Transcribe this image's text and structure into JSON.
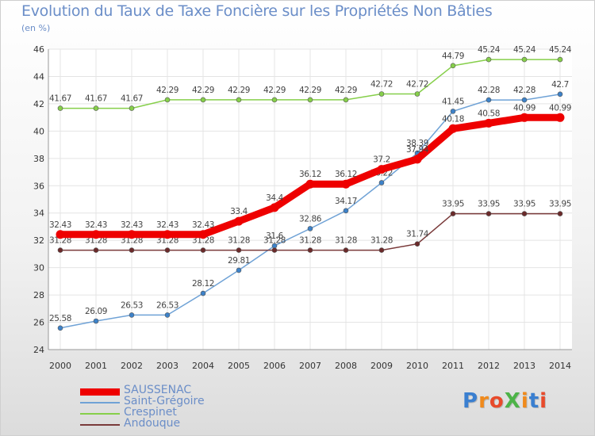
{
  "title": "Evolution du Taux de Taxe Foncière sur les Propriétés Non Bâties",
  "ylabel": "(en %)",
  "logo": {
    "text": "ProXiti",
    "colors": [
      "#3a7fd0",
      "#f08a1c",
      "#e84a2b",
      "#4db348",
      "#f08a1c",
      "#3a7fd0",
      "#e84a2b"
    ]
  },
  "chart_data": {
    "type": "line",
    "x": [
      "2000",
      "2001",
      "2002",
      "2003",
      "2004",
      "2005",
      "2006",
      "2007",
      "2008",
      "2009",
      "2010",
      "2011",
      "2012",
      "2013",
      "2014"
    ],
    "ylim": [
      24,
      46
    ],
    "yticks": [
      "24",
      "26",
      "28",
      "30",
      "32",
      "34",
      "36",
      "38",
      "40",
      "42",
      "44",
      "46"
    ],
    "grid": true,
    "legend_position": "bottom-left",
    "series": [
      {
        "name": "Crespinet",
        "color": "#86cf4a",
        "marker": "#86cf4a",
        "width": 1.5,
        "values": [
          41.67,
          41.67,
          41.67,
          42.29,
          42.29,
          42.29,
          42.29,
          42.29,
          42.29,
          42.72,
          42.72,
          44.79,
          45.24,
          45.24,
          45.24
        ],
        "labels": [
          "41.67",
          "41.67",
          "41.67",
          "42.29",
          "42.29",
          "42.29",
          "42.29",
          "42.29",
          "42.29",
          "42.72",
          "42.72",
          "44.79",
          "45.24",
          "45.24",
          "45.24"
        ]
      },
      {
        "name": "Saint-Grégoire",
        "color": "#6fa2d6",
        "marker": "#3d82c9",
        "width": 1.5,
        "values": [
          25.58,
          26.09,
          26.53,
          26.53,
          28.12,
          29.81,
          31.6,
          32.86,
          34.17,
          36.22,
          38.39,
          41.45,
          42.28,
          42.28,
          42.7
        ],
        "labels": [
          "25.58",
          "26.09",
          "26.53",
          "26.53",
          "28.12",
          "29.81",
          "31.6",
          "32.86",
          "34.17",
          "36.22",
          "38.39",
          "41.45",
          "42.28",
          "42.28",
          "42.7"
        ]
      },
      {
        "name": "Andouque",
        "color": "#7a3a3a",
        "marker": "#6b2a2a",
        "width": 1.5,
        "values": [
          31.28,
          31.28,
          31.28,
          31.28,
          31.28,
          31.28,
          31.28,
          31.28,
          31.28,
          31.28,
          31.74,
          33.95,
          33.95,
          33.95,
          33.95
        ],
        "labels": [
          "31.28",
          "31.28",
          "31.28",
          "31.28",
          "31.28",
          "31.28",
          "31.28",
          "31.28",
          "31.28",
          "31.28",
          "31.74",
          "33.95",
          "33.95",
          "33.95",
          "33.95"
        ]
      },
      {
        "name": "SAUSSENAC",
        "color": "#ee0000",
        "marker": "#ee0000",
        "width": 9,
        "values": [
          32.43,
          32.43,
          32.43,
          32.43,
          32.43,
          33.4,
          34.4,
          36.12,
          36.12,
          37.2,
          37.94,
          40.18,
          40.58,
          40.99,
          40.99
        ],
        "labels": [
          "32.43",
          "32.43",
          "32.43",
          "32.43",
          "32.43",
          "33.4",
          "34.4",
          "36.12",
          "36.12",
          "37.2",
          "37.94",
          "40.18",
          "40.58",
          "40.99",
          "40.99"
        ]
      }
    ],
    "legend_order": [
      "SAUSSENAC",
      "Saint-Grégoire",
      "Crespinet",
      "Andouque"
    ]
  }
}
